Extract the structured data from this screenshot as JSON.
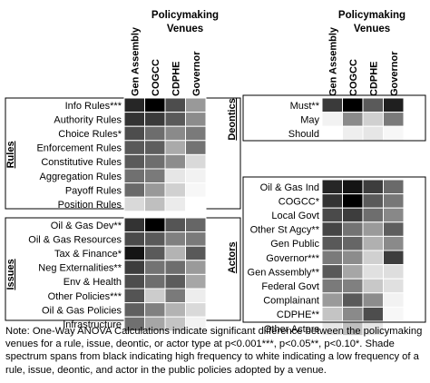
{
  "chart_data": [
    {
      "type": "heatmap",
      "title": "Policymaking Venues",
      "columns": [
        "Gen Assembly",
        "COGCC",
        "CDPHE",
        "Governor"
      ],
      "panels": [
        {
          "name": "Rules",
          "rows": [
            "Info Rules***",
            "Authority Rules",
            "Choice Rules*",
            "Enforcement Rules",
            "Constitutive Rules",
            "Aggregation Rules",
            "Payoff Rules",
            "Position Rules"
          ],
          "shades": [
            [
              "#262626",
              "#000000",
              "#4d4d4d",
              "#999999"
            ],
            [
              "#333333",
              "#3a3a3a",
              "#5a5a5a",
              "#8c8c8c"
            ],
            [
              "#4d4d4d",
              "#6d6d6d",
              "#8a8a8a",
              "#7a7a7a"
            ],
            [
              "#595959",
              "#5e5e5e",
              "#aaaaaa",
              "#737373"
            ],
            [
              "#5a5a5a",
              "#6e6e6e",
              "#8c8c8c",
              "#d9d9d9"
            ],
            [
              "#707070",
              "#7a7a7a",
              "#e6e6e6",
              "#f2f2f2"
            ],
            [
              "#6a6a6a",
              "#999999",
              "#d0d0d0",
              "#f7f7f7"
            ],
            [
              "#d9d9d9",
              "#bfbfbf",
              "#ebebeb",
              "#ffffff"
            ]
          ]
        },
        {
          "name": "Issues",
          "rows": [
            "Oil & Gas Dev**",
            "Oil & Gas Resources",
            "Tax & Finance*",
            "Neg Externalities**",
            "Env & Health",
            "Other Policies***",
            "Oil & Gas Policies",
            "Infrastructure"
          ],
          "shades": [
            [
              "#333333",
              "#000000",
              "#555555",
              "#666666"
            ],
            [
              "#4a4a4a",
              "#595959",
              "#808080",
              "#7a7a7a"
            ],
            [
              "#141414",
              "#5a5a5a",
              "#b3b3b3",
              "#595959"
            ],
            [
              "#3d3d3d",
              "#737373",
              "#6e6e6e",
              "#9a9a9a"
            ],
            [
              "#4d4d4d",
              "#6e6e6e",
              "#5c5c5c",
              "#a6a6a6"
            ],
            [
              "#545454",
              "#cccccc",
              "#7a7a7a",
              "#ededed"
            ],
            [
              "#5f5f5f",
              "#808080",
              "#b3b3b3",
              "#d9d9d9"
            ],
            [
              "#707070",
              "#a6a6a6",
              "#c4c4c4",
              "#f2f2f2"
            ]
          ]
        },
        {
          "name": "Deontics",
          "rows": [
            "Must**",
            "May",
            "Should"
          ],
          "shades": [
            [
              "#3a3a3a",
              "#000000",
              "#5a5a5a",
              "#1f1f1f"
            ],
            [
              "#f2f2f2",
              "#8a8a8a",
              "#d0d0d0",
              "#7a7a7a"
            ],
            [
              "#ffffff",
              "#eeeeee",
              "#e6e6e6",
              "#f7f7f7"
            ]
          ]
        },
        {
          "name": "Actors",
          "rows": [
            "Oil & Gas Ind",
            "COGCC*",
            "Local Govt",
            "Other St Agcy**",
            "Gen Public",
            "Governor***",
            "Gen Assembly**",
            "Federal Govt",
            "Complainant",
            "CDPHE**",
            "Other Actors"
          ],
          "shades": [
            [
              "#262626",
              "#141414",
              "#3d3d3d",
              "#6a6a6a"
            ],
            [
              "#333333",
              "#000000",
              "#5a5a5a",
              "#777777"
            ],
            [
              "#4a4a4a",
              "#3d3d3d",
              "#6e6e6e",
              "#888888"
            ],
            [
              "#454545",
              "#737373",
              "#9a9a9a",
              "#5e5e5e"
            ],
            [
              "#595959",
              "#666666",
              "#b0b0b0",
              "#8a8a8a"
            ],
            [
              "#7a7a7a",
              "#8c8c8c",
              "#d0d0d0",
              "#3d3d3d"
            ],
            [
              "#595959",
              "#a6a6a6",
              "#e0e0e0",
              "#dedede"
            ],
            [
              "#7a7a7a",
              "#808080",
              "#c8c8c8",
              "#e0e0e0"
            ],
            [
              "#9a9a9a",
              "#595959",
              "#8c8c8c",
              "#f2f2f2"
            ],
            [
              "#c4c4c4",
              "#8a8a8a",
              "#4d4d4d",
              "#f7f7f7"
            ],
            [
              "#e6e6e6",
              "#bfbfbf",
              "#e6e6e6",
              "#ffffff"
            ]
          ]
        }
      ]
    }
  ],
  "note": "Note: One-Way ANOVA Calculations indicate significant difference between the policymaking venues for a rule, issue, deontic, or actor type at p<0.001***, p<0.05**, p<0.10*. Shade spectrum spans from black indicating high frequency to white indicating a low frequency of a rule, issue, deontic, and actor in the public policies adopted by a venue."
}
